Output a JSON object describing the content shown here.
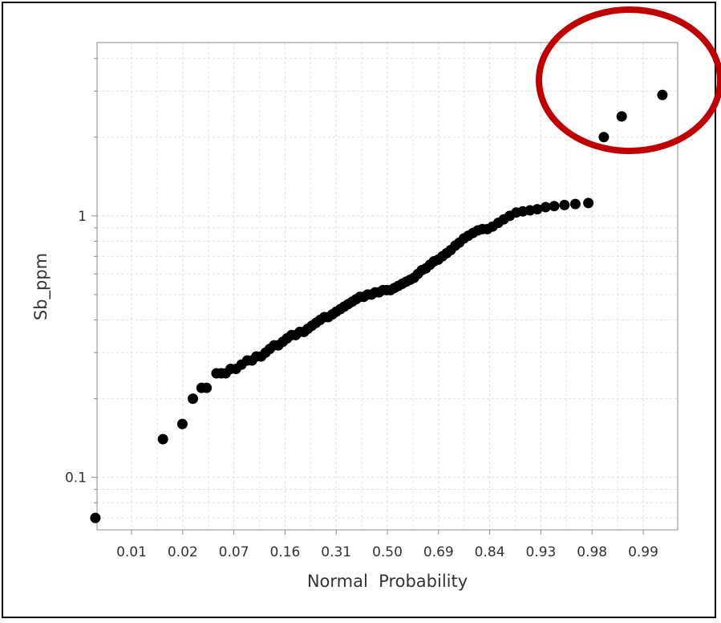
{
  "chart_data": {
    "type": "scatter",
    "title": "",
    "xlabel": "Normal  Probability",
    "ylabel": "Sb_ppm",
    "x_scale": "normal-probability",
    "y_scale": "log",
    "ylim": [
      0.063,
      4.6
    ],
    "xlim_z": [
      -2.95,
      3.15
    ],
    "x_tick_labels": [
      "0.01",
      "0.02",
      "0.07",
      "0.16",
      "0.31",
      "0.50",
      "0.69",
      "0.84",
      "0.93",
      "0.98",
      "0.99"
    ],
    "y_tick_labels": [
      "1",
      "0.1"
    ],
    "y_tick_values": [
      1,
      0.1
    ],
    "grid": true,
    "point_color": "#000000",
    "annotation": {
      "shape": "ellipse",
      "color": "#c00000",
      "target": "three highest values"
    },
    "series": [
      {
        "points": [
          [
            0.0015,
            0.07
          ],
          [
            0.012,
            0.14
          ],
          [
            0.02,
            0.16
          ],
          [
            0.026,
            0.2
          ],
          [
            0.032,
            0.22
          ],
          [
            0.036,
            0.22
          ],
          [
            0.045,
            0.25
          ],
          [
            0.05,
            0.25
          ],
          [
            0.055,
            0.25
          ],
          [
            0.061,
            0.26
          ],
          [
            0.068,
            0.26
          ],
          [
            0.076,
            0.27
          ],
          [
            0.085,
            0.28
          ],
          [
            0.093,
            0.28
          ],
          [
            0.101,
            0.29
          ],
          [
            0.11,
            0.29
          ],
          [
            0.119,
            0.3
          ],
          [
            0.128,
            0.31
          ],
          [
            0.138,
            0.32
          ],
          [
            0.148,
            0.32
          ],
          [
            0.159,
            0.33
          ],
          [
            0.17,
            0.34
          ],
          [
            0.182,
            0.35
          ],
          [
            0.194,
            0.35
          ],
          [
            0.206,
            0.36
          ],
          [
            0.219,
            0.36
          ],
          [
            0.231,
            0.37
          ],
          [
            0.244,
            0.38
          ],
          [
            0.258,
            0.39
          ],
          [
            0.272,
            0.4
          ],
          [
            0.287,
            0.41
          ],
          [
            0.301,
            0.41
          ],
          [
            0.316,
            0.42
          ],
          [
            0.331,
            0.43
          ],
          [
            0.347,
            0.44
          ],
          [
            0.362,
            0.45
          ],
          [
            0.378,
            0.46
          ],
          [
            0.394,
            0.47
          ],
          [
            0.41,
            0.48
          ],
          [
            0.425,
            0.49
          ],
          [
            0.441,
            0.49
          ],
          [
            0.457,
            0.5
          ],
          [
            0.473,
            0.5
          ],
          [
            0.489,
            0.51
          ],
          [
            0.505,
            0.51
          ],
          [
            0.521,
            0.52
          ],
          [
            0.537,
            0.52
          ],
          [
            0.553,
            0.52
          ],
          [
            0.569,
            0.53
          ],
          [
            0.585,
            0.54
          ],
          [
            0.601,
            0.55
          ],
          [
            0.617,
            0.56
          ],
          [
            0.633,
            0.57
          ],
          [
            0.648,
            0.58
          ],
          [
            0.663,
            0.6
          ],
          [
            0.678,
            0.62
          ],
          [
            0.693,
            0.63
          ],
          [
            0.708,
            0.65
          ],
          [
            0.722,
            0.67
          ],
          [
            0.737,
            0.68
          ],
          [
            0.751,
            0.7
          ],
          [
            0.765,
            0.72
          ],
          [
            0.778,
            0.74
          ],
          [
            0.792,
            0.77
          ],
          [
            0.804,
            0.79
          ],
          [
            0.817,
            0.82
          ],
          [
            0.829,
            0.84
          ],
          [
            0.841,
            0.86
          ],
          [
            0.853,
            0.88
          ],
          [
            0.864,
            0.89
          ],
          [
            0.875,
            0.89
          ],
          [
            0.886,
            0.91
          ],
          [
            0.897,
            0.94
          ],
          [
            0.907,
            0.97
          ],
          [
            0.917,
            1.0
          ],
          [
            0.927,
            1.03
          ],
          [
            0.936,
            1.04
          ],
          [
            0.945,
            1.05
          ],
          [
            0.953,
            1.06
          ],
          [
            0.961,
            1.08
          ],
          [
            0.968,
            1.09
          ],
          [
            0.975,
            1.1
          ],
          [
            0.981,
            1.11
          ],
          [
            0.9865,
            1.12
          ],
          [
            0.9912,
            2.0
          ],
          [
            0.9948,
            2.4
          ],
          [
            0.9986,
            2.9
          ]
        ]
      }
    ]
  }
}
